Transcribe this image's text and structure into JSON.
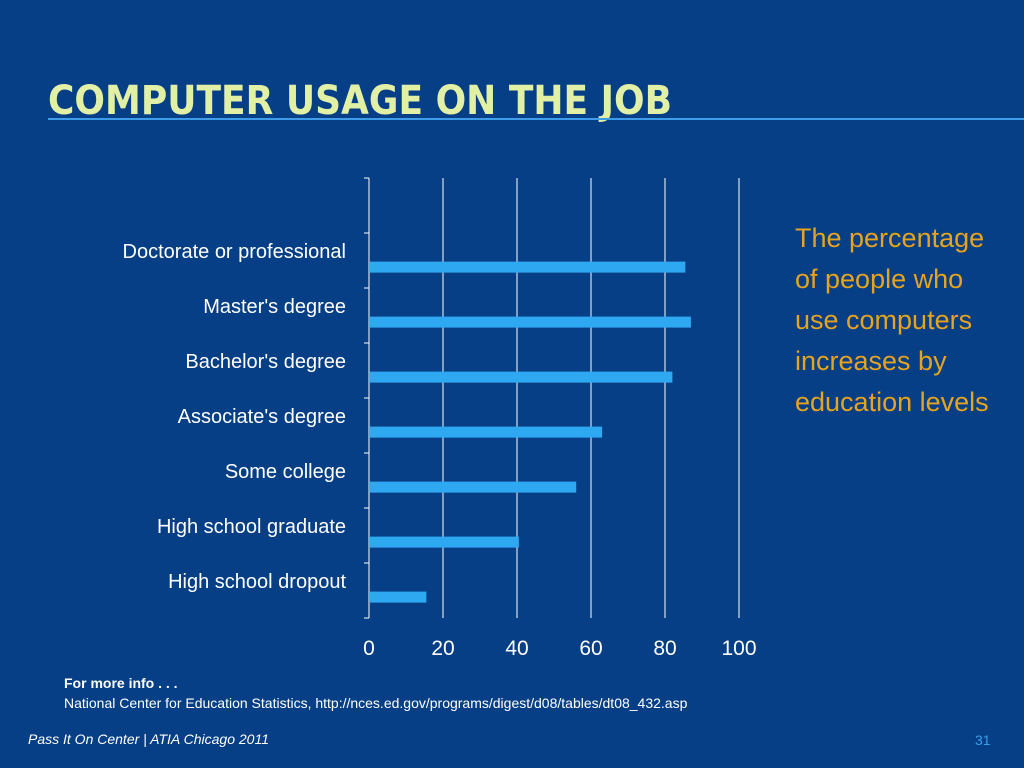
{
  "slide": {
    "title": "COMPUTER USAGE ON THE JOB",
    "callout": "The percentage of people who use computers increases by education levels",
    "source_heading": "For more info . . .",
    "source_text": "National Center for Education Statistics, http://nces.ed.gov/programs/digest/d08/tables/dt08_432.asp",
    "footer": "Pass It On Center | ATIA Chicago 2011",
    "page_number": "31"
  },
  "colors": {
    "background": "#063f86",
    "title": "#e2f0a6",
    "accent_rule": "#3f9ce8",
    "bar": "#2fa8f2",
    "callout": "#e5a31f",
    "axis_text": "#ffffff"
  },
  "chart_data": {
    "type": "bar",
    "orientation": "horizontal",
    "categories": [
      "Doctorate or professional",
      "Master's degree",
      "Bachelor's degree",
      "Associate's degree",
      "Some college",
      "High school graduate",
      "High school dropout"
    ],
    "values": [
      85.5,
      87,
      82,
      63,
      56,
      40.5,
      15.5
    ],
    "xlim": [
      0,
      100
    ],
    "xticks": [
      "0",
      "20",
      "40",
      "60",
      "80",
      "100"
    ],
    "grid": "vertical",
    "legend": "none",
    "title": "",
    "xlabel": "",
    "ylabel": ""
  }
}
